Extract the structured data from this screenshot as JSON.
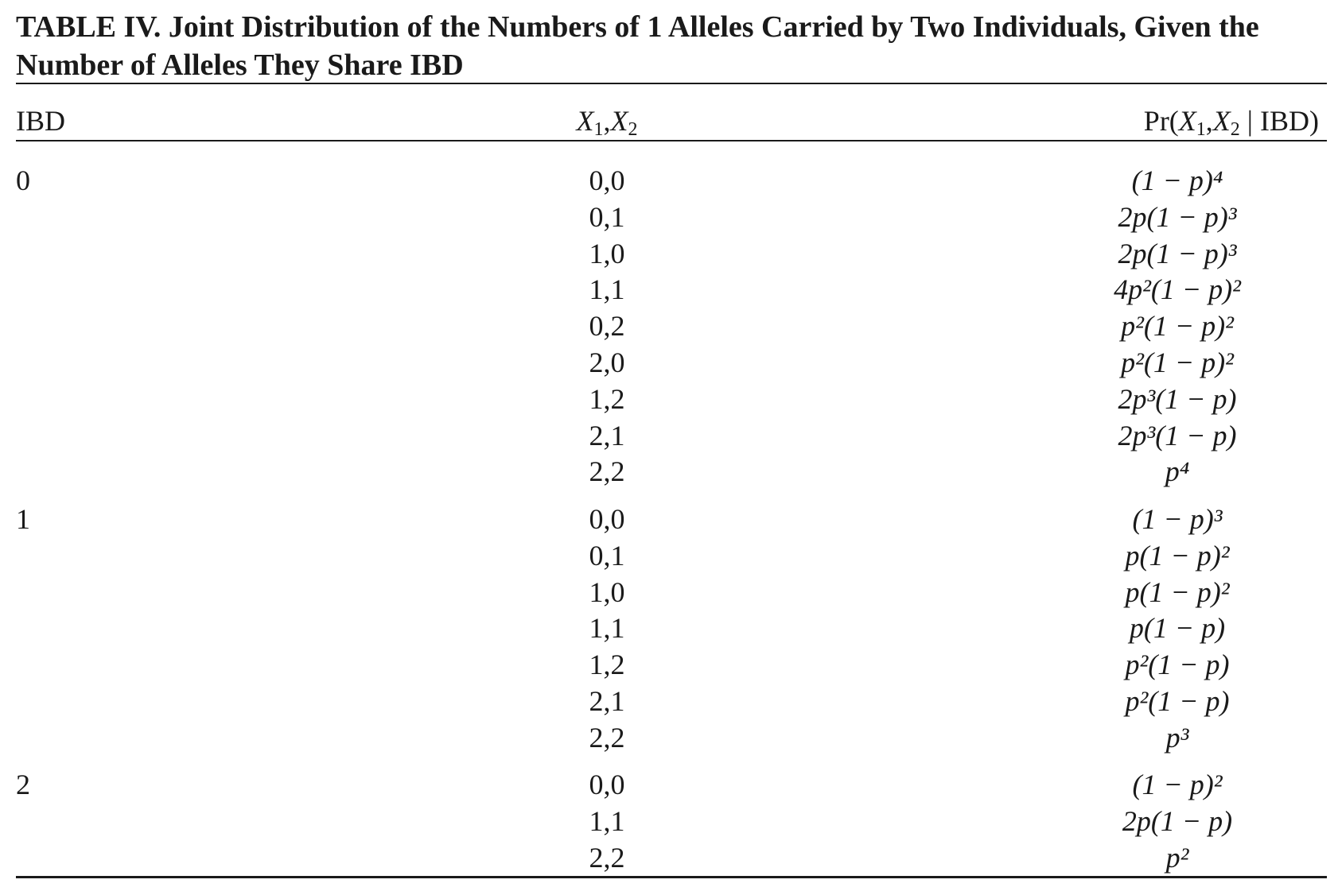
{
  "title": "TABLE IV.  Joint Distribution of the Numbers of 1 Alleles Carried by Two Individuals, Given the Number of Alleles They Share IBD",
  "headers": {
    "ibd": "IBD",
    "x": "X1,X2",
    "pr": "Pr(X1,X2 | IBD)"
  },
  "groups": [
    {
      "ibd": "0",
      "rows": [
        {
          "x": "0,0",
          "pr": "(1 − p)⁴"
        },
        {
          "x": "0,1",
          "pr": "2p(1 − p)³"
        },
        {
          "x": "1,0",
          "pr": "2p(1 − p)³"
        },
        {
          "x": "1,1",
          "pr": "4p²(1 − p)²"
        },
        {
          "x": "0,2",
          "pr": "p²(1 − p)²"
        },
        {
          "x": "2,0",
          "pr": "p²(1 − p)²"
        },
        {
          "x": "1,2",
          "pr": "2p³(1 − p)"
        },
        {
          "x": "2,1",
          "pr": "2p³(1 − p)"
        },
        {
          "x": "2,2",
          "pr": "p⁴"
        }
      ]
    },
    {
      "ibd": "1",
      "rows": [
        {
          "x": "0,0",
          "pr": "(1 − p)³"
        },
        {
          "x": "0,1",
          "pr": "p(1 − p)²"
        },
        {
          "x": "1,0",
          "pr": "p(1 − p)²"
        },
        {
          "x": "1,1",
          "pr": "p(1 − p)"
        },
        {
          "x": "1,2",
          "pr": "p²(1 − p)"
        },
        {
          "x": "2,1",
          "pr": "p²(1 − p)"
        },
        {
          "x": "2,2",
          "pr": "p³"
        }
      ]
    },
    {
      "ibd": "2",
      "rows": [
        {
          "x": "0,0",
          "pr": "(1 − p)²"
        },
        {
          "x": "1,1",
          "pr": "2p(1 − p)"
        },
        {
          "x": "2,2",
          "pr": "p²"
        }
      ]
    }
  ]
}
